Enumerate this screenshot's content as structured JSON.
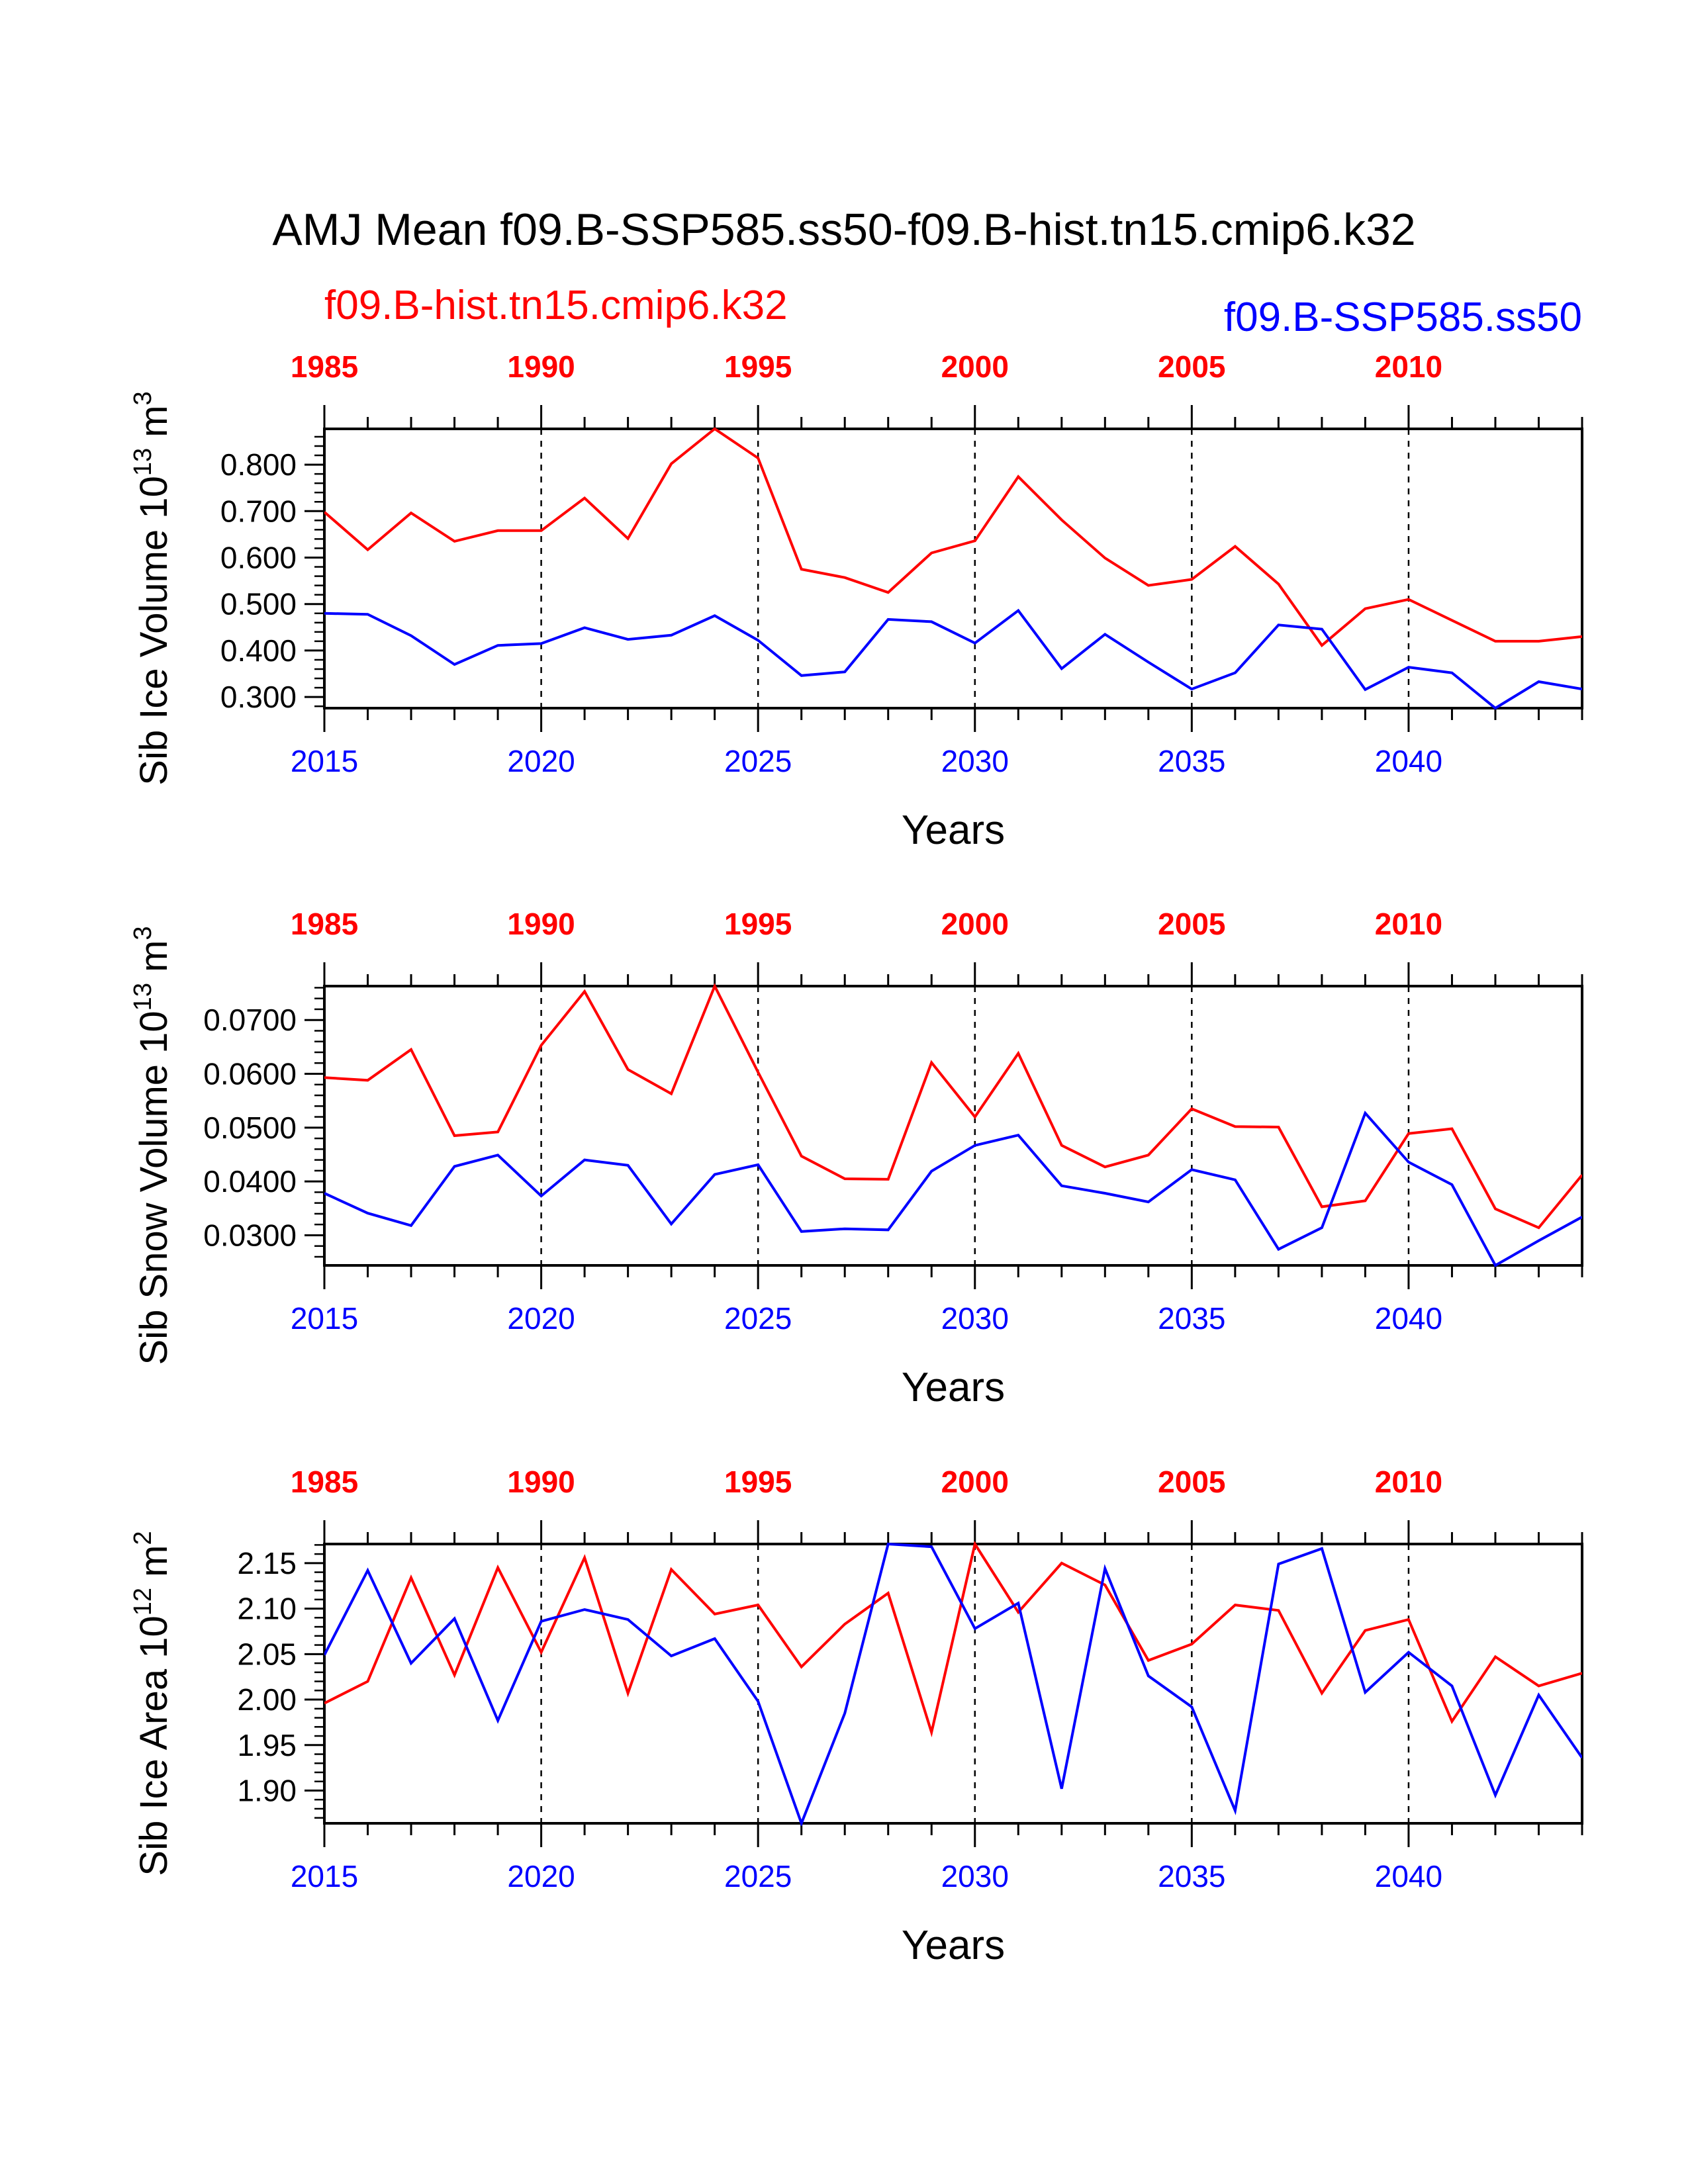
{
  "title": "AMJ Mean f09.B-SSP585.ss50-f09.B-hist.tn15.cmip6.k32",
  "legend": {
    "hist_label": "f09.B-hist.tn15.cmip6.k32",
    "ssp_label": "f09.B-SSP585.ss50"
  },
  "colors": {
    "hist": "#ff0000",
    "ssp": "#0000ff",
    "axis": "#000000"
  },
  "chart_data": [
    {
      "type": "line",
      "title": "",
      "xlabel": "Years",
      "ylabel": "Sib Ice Volume 10",
      "ylabel_sup": "13",
      "ylabel_unit": " m",
      "ylabel_unit_sup": "3",
      "x_bottom": {
        "start": 2015,
        "end": 2044,
        "tick_labels": [
          "2015",
          "2020",
          "2025",
          "2030",
          "2035",
          "2040"
        ]
      },
      "x_top": {
        "start": 1985,
        "end": 2014,
        "tick_labels": [
          "1985",
          "1990",
          "1995",
          "2000",
          "2005",
          "2010"
        ]
      },
      "ylim": [
        0.276,
        0.877
      ],
      "yticks": [
        "0.300",
        "0.400",
        "0.500",
        "0.600",
        "0.700",
        "0.800"
      ],
      "ytick_values": [
        0.3,
        0.4,
        0.5,
        0.6,
        0.7,
        0.8
      ],
      "series": [
        {
          "name": "f09.B-hist.tn15.cmip6.k32",
          "color": "#ff0000",
          "values": [
            0.698,
            0.617,
            0.696,
            0.635,
            0.658,
            0.658,
            0.728,
            0.641,
            0.802,
            0.877,
            0.814,
            0.575,
            0.557,
            0.525,
            0.61,
            0.636,
            0.774,
            0.681,
            0.599,
            0.54,
            0.553,
            0.624,
            0.543,
            0.411,
            0.49,
            0.51,
            0.465,
            0.42,
            0.42,
            0.43
          ]
        },
        {
          "name": "f09.B-SSP585.ss50",
          "color": "#0000ff",
          "values": [
            0.48,
            0.478,
            0.432,
            0.37,
            0.411,
            0.415,
            0.449,
            0.424,
            0.433,
            0.475,
            0.422,
            0.346,
            0.354,
            0.467,
            0.462,
            0.416,
            0.486,
            0.361,
            0.435,
            0.375,
            0.317,
            0.352,
            0.455,
            0.446,
            0.316,
            0.364,
            0.352,
            0.276,
            0.333,
            0.317
          ]
        }
      ]
    },
    {
      "type": "line",
      "title": "",
      "xlabel": "Years",
      "ylabel": "Sib Snow Volume 10",
      "ylabel_sup": "13",
      "ylabel_unit": " m",
      "ylabel_unit_sup": "3",
      "x_bottom": {
        "start": 2015,
        "end": 2044,
        "tick_labels": [
          "2015",
          "2020",
          "2025",
          "2030",
          "2035",
          "2040"
        ]
      },
      "x_top": {
        "start": 1985,
        "end": 2014,
        "tick_labels": [
          "1985",
          "1990",
          "1995",
          "2000",
          "2005",
          "2010"
        ]
      },
      "ylim": [
        0.0244,
        0.0763
      ],
      "yticks": [
        "0.0300",
        "0.0400",
        "0.0500",
        "0.0600",
        "0.0700"
      ],
      "ytick_values": [
        0.03,
        0.04,
        0.05,
        0.06,
        0.07
      ],
      "series": [
        {
          "name": "f09.B-hist.tn15.cmip6.k32",
          "color": "#ff0000",
          "values": [
            0.0593,
            0.0588,
            0.0645,
            0.0485,
            0.0492,
            0.0653,
            0.0753,
            0.0608,
            0.0563,
            0.0763,
            0.0603,
            0.0447,
            0.0405,
            0.0404,
            0.0621,
            0.052,
            0.0638,
            0.0467,
            0.0427,
            0.0449,
            0.0535,
            0.0502,
            0.0501,
            0.0353,
            0.0364,
            0.0489,
            0.0498,
            0.0349,
            0.0314,
            0.0412
          ]
        },
        {
          "name": "f09.B-SSP585.ss50",
          "color": "#0000ff",
          "values": [
            0.0378,
            0.0341,
            0.0318,
            0.0428,
            0.0449,
            0.0373,
            0.044,
            0.043,
            0.0321,
            0.0413,
            0.0431,
            0.0307,
            0.0312,
            0.031,
            0.0419,
            0.0467,
            0.0486,
            0.0392,
            0.0378,
            0.0362,
            0.0422,
            0.0403,
            0.0274,
            0.0314,
            0.0527,
            0.0436,
            0.0394,
            0.0244,
            0.029,
            0.0334
          ]
        }
      ]
    },
    {
      "type": "line",
      "title": "",
      "xlabel": "Years",
      "ylabel": "Sib Ice Area 10",
      "ylabel_sup": "12",
      "ylabel_unit": " m",
      "ylabel_unit_sup": "2",
      "x_bottom": {
        "start": 2015,
        "end": 2044,
        "tick_labels": [
          "2015",
          "2020",
          "2025",
          "2030",
          "2035",
          "2040"
        ]
      },
      "x_top": {
        "start": 1985,
        "end": 2014,
        "tick_labels": [
          "1985",
          "1990",
          "1995",
          "2000",
          "2005",
          "2010"
        ]
      },
      "ylim": [
        1.864,
        2.171
      ],
      "yticks": [
        "1.90",
        "1.95",
        "2.00",
        "2.05",
        "2.10",
        "2.15"
      ],
      "ytick_values": [
        1.9,
        1.95,
        2.0,
        2.05,
        2.1,
        2.15
      ],
      "series": [
        {
          "name": "f09.B-hist.tn15.cmip6.k32",
          "color": "#ff0000",
          "values": [
            1.996,
            2.02,
            2.134,
            2.027,
            2.145,
            2.052,
            2.156,
            2.007,
            2.143,
            2.094,
            2.104,
            2.036,
            2.083,
            2.117,
            1.964,
            2.171,
            2.096,
            2.15,
            2.126,
            2.043,
            2.061,
            2.104,
            2.098,
            2.007,
            2.076,
            2.088,
            1.976,
            2.047,
            2.015,
            2.029
          ]
        },
        {
          "name": "f09.B-SSP585.ss50",
          "color": "#0000ff",
          "values": [
            2.049,
            2.142,
            2.04,
            2.089,
            1.977,
            2.086,
            2.099,
            2.088,
            2.048,
            2.067,
            1.998,
            1.864,
            1.985,
            2.171,
            2.168,
            2.078,
            2.106,
            1.902,
            2.144,
            2.026,
            1.992,
            1.878,
            2.149,
            2.166,
            2.008,
            2.052,
            2.015,
            1.895,
            2.005,
            1.936
          ]
        }
      ]
    }
  ]
}
